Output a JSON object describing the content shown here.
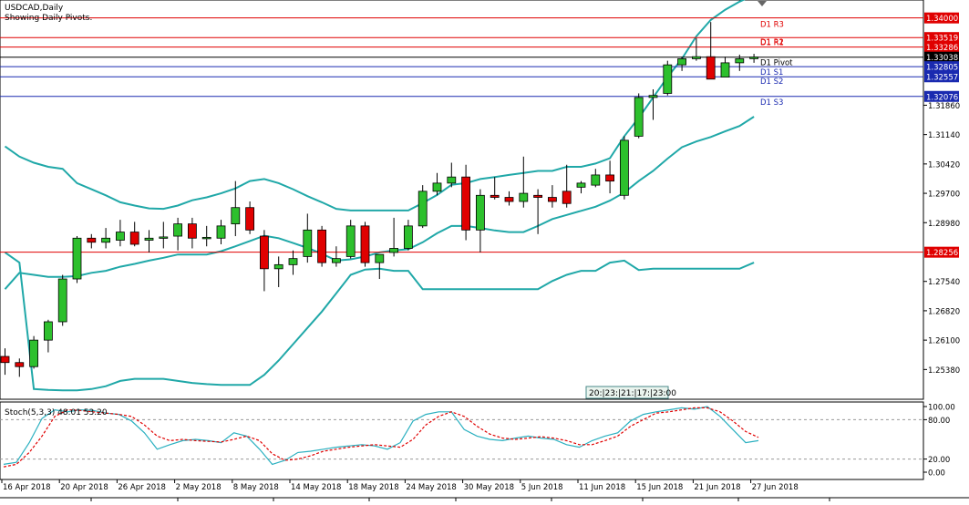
{
  "header": {
    "symbol_line": "USDCAD,Daily",
    "pivot_line": "Showing Daily Pivots."
  },
  "colors": {
    "bull": "#2dc02d",
    "bear": "#e00000",
    "bands": "#20a8a8",
    "pivot_res": "#e00000",
    "pivot_sup": "#1a2ab0",
    "pivot_main": "#000000",
    "stoch_main": "#2ab0c0",
    "stoch_signal": "#e00000"
  },
  "chart_data": [
    {
      "type": "candlestick",
      "title": "USDCAD,Daily",
      "subtitle": "Showing Daily Pivots.",
      "ylim": [
        1.2465,
        1.3444
      ],
      "y_ticks": [
        "1.31860",
        "1.31140",
        "1.30420",
        "1.29700",
        "1.28980",
        "1.27540",
        "1.26820",
        "1.26100",
        "1.25380"
      ],
      "x_ticks": [
        "16 Apr 2018",
        "20 Apr 2018",
        "26 Apr 2018",
        "2 May 2018",
        "8 May 2018",
        "14 May 2018",
        "18 May 2018",
        "24 May 2018",
        "30 May 2018",
        "5 Jun 2018",
        "11 Jun 2018",
        "15 Jun 2018",
        "21 Jun 2018",
        "27 Jun 2018"
      ],
      "candles": [
        {
          "o": 1.257,
          "h": 1.259,
          "l": 1.2525,
          "c": 1.2555
        },
        {
          "o": 1.2555,
          "h": 1.2565,
          "l": 1.252,
          "c": 1.2545
        },
        {
          "o": 1.2545,
          "h": 1.262,
          "l": 1.254,
          "c": 1.261
        },
        {
          "o": 1.261,
          "h": 1.266,
          "l": 1.258,
          "c": 1.2655
        },
        {
          "o": 1.2655,
          "h": 1.277,
          "l": 1.2645,
          "c": 1.276
        },
        {
          "o": 1.276,
          "h": 1.2865,
          "l": 1.275,
          "c": 1.286
        },
        {
          "o": 1.286,
          "h": 1.287,
          "l": 1.2835,
          "c": 1.285
        },
        {
          "o": 1.285,
          "h": 1.2885,
          "l": 1.2835,
          "c": 1.286
        },
        {
          "o": 1.2855,
          "h": 1.2905,
          "l": 1.284,
          "c": 1.2875
        },
        {
          "o": 1.2875,
          "h": 1.29,
          "l": 1.284,
          "c": 1.2845
        },
        {
          "o": 1.2855,
          "h": 1.288,
          "l": 1.2825,
          "c": 1.286
        },
        {
          "o": 1.286,
          "h": 1.29,
          "l": 1.2835,
          "c": 1.2863
        },
        {
          "o": 1.2865,
          "h": 1.291,
          "l": 1.283,
          "c": 1.2895
        },
        {
          "o": 1.2895,
          "h": 1.291,
          "l": 1.2835,
          "c": 1.286
        },
        {
          "o": 1.286,
          "h": 1.289,
          "l": 1.284,
          "c": 1.2862
        },
        {
          "o": 1.286,
          "h": 1.2905,
          "l": 1.2845,
          "c": 1.289
        },
        {
          "o": 1.2895,
          "h": 1.3,
          "l": 1.2865,
          "c": 1.2935
        },
        {
          "o": 1.2935,
          "h": 1.295,
          "l": 1.287,
          "c": 1.288
        },
        {
          "o": 1.2865,
          "h": 1.288,
          "l": 1.273,
          "c": 1.2785
        },
        {
          "o": 1.2785,
          "h": 1.2815,
          "l": 1.274,
          "c": 1.2795
        },
        {
          "o": 1.2795,
          "h": 1.283,
          "l": 1.277,
          "c": 1.281
        },
        {
          "o": 1.2815,
          "h": 1.292,
          "l": 1.28,
          "c": 1.288
        },
        {
          "o": 1.288,
          "h": 1.289,
          "l": 1.279,
          "c": 1.28
        },
        {
          "o": 1.28,
          "h": 1.284,
          "l": 1.279,
          "c": 1.281
        },
        {
          "o": 1.2815,
          "h": 1.2905,
          "l": 1.281,
          "c": 1.289
        },
        {
          "o": 1.289,
          "h": 1.29,
          "l": 1.279,
          "c": 1.28
        },
        {
          "o": 1.28,
          "h": 1.282,
          "l": 1.276,
          "c": 1.282
        },
        {
          "o": 1.2825,
          "h": 1.291,
          "l": 1.2815,
          "c": 1.2835
        },
        {
          "o": 1.2835,
          "h": 1.2905,
          "l": 1.283,
          "c": 1.289
        },
        {
          "o": 1.289,
          "h": 1.299,
          "l": 1.2885,
          "c": 1.2975
        },
        {
          "o": 1.2975,
          "h": 1.302,
          "l": 1.2965,
          "c": 1.2995
        },
        {
          "o": 1.2995,
          "h": 1.3045,
          "l": 1.2985,
          "c": 1.301
        },
        {
          "o": 1.301,
          "h": 1.304,
          "l": 1.2855,
          "c": 1.288
        },
        {
          "o": 1.288,
          "h": 1.298,
          "l": 1.2825,
          "c": 1.2965
        },
        {
          "o": 1.2965,
          "h": 1.301,
          "l": 1.2955,
          "c": 1.296
        },
        {
          "o": 1.296,
          "h": 1.2975,
          "l": 1.294,
          "c": 1.295
        },
        {
          "o": 1.295,
          "h": 1.306,
          "l": 1.2935,
          "c": 1.297
        },
        {
          "o": 1.2965,
          "h": 1.298,
          "l": 1.287,
          "c": 1.296
        },
        {
          "o": 1.296,
          "h": 1.299,
          "l": 1.2935,
          "c": 1.295
        },
        {
          "o": 1.2975,
          "h": 1.304,
          "l": 1.2935,
          "c": 1.2945
        },
        {
          "o": 1.2985,
          "h": 1.3,
          "l": 1.297,
          "c": 1.2995
        },
        {
          "o": 1.299,
          "h": 1.303,
          "l": 1.2985,
          "c": 1.3015
        },
        {
          "o": 1.3015,
          "h": 1.305,
          "l": 1.297,
          "c": 1.3
        },
        {
          "o": 1.2965,
          "h": 1.311,
          "l": 1.2955,
          "c": 1.31
        },
        {
          "o": 1.311,
          "h": 1.3215,
          "l": 1.3105,
          "c": 1.3205
        },
        {
          "o": 1.3205,
          "h": 1.3225,
          "l": 1.315,
          "c": 1.321
        },
        {
          "o": 1.3215,
          "h": 1.3295,
          "l": 1.321,
          "c": 1.3285
        },
        {
          "o": 1.3285,
          "h": 1.3305,
          "l": 1.327,
          "c": 1.33
        },
        {
          "o": 1.33,
          "h": 1.335,
          "l": 1.3295,
          "c": 1.3305
        },
        {
          "o": 1.3305,
          "h": 1.339,
          "l": 1.325,
          "c": 1.325
        },
        {
          "o": 1.3255,
          "h": 1.3305,
          "l": 1.3255,
          "c": 1.329
        },
        {
          "o": 1.329,
          "h": 1.331,
          "l": 1.327,
          "c": 1.33
        },
        {
          "o": 1.33,
          "h": 1.3312,
          "l": 1.329,
          "c": 1.3304
        }
      ],
      "bands": {
        "upper": [
          1.3085,
          1.306,
          1.3045,
          1.3035,
          1.303,
          1.2995,
          1.298,
          1.2965,
          1.2948,
          1.294,
          1.2933,
          1.2932,
          1.294,
          1.2953,
          1.296,
          1.297,
          1.2982,
          1.3,
          1.3005,
          1.2995,
          1.298,
          1.2963,
          1.2948,
          1.2932,
          1.2928,
          1.2928,
          1.2928,
          1.2928,
          1.2928,
          1.2946,
          1.2966,
          1.2991,
          1.2995,
          1.3005,
          1.301,
          1.3015,
          1.302,
          1.3025,
          1.3025,
          1.3035,
          1.3035,
          1.3043,
          1.3056,
          1.311,
          1.3155,
          1.3205,
          1.3255,
          1.33,
          1.3355,
          1.3395,
          1.342,
          1.344,
          1.3456
        ],
        "middle": [
          1.2735,
          1.2775,
          1.277,
          1.2765,
          1.2765,
          1.2767,
          1.2775,
          1.278,
          1.279,
          1.2797,
          1.2805,
          1.2812,
          1.282,
          1.282,
          1.282,
          1.2828,
          1.284,
          1.2853,
          1.2866,
          1.286,
          1.2848,
          1.2836,
          1.2822,
          1.2805,
          1.2808,
          1.2815,
          1.2825,
          1.283,
          1.2833,
          1.285,
          1.2872,
          1.289,
          1.289,
          1.2885,
          1.2879,
          1.2875,
          1.2875,
          1.289,
          1.2907,
          1.2917,
          1.2927,
          1.2937,
          1.2952,
          1.2972,
          1.3,
          1.3025,
          1.3055,
          1.3083,
          1.3097,
          1.3108,
          1.3122,
          1.3135,
          1.3158
        ],
        "lower": [
          1.2825,
          1.28,
          1.249,
          1.2488,
          1.2487,
          1.2487,
          1.249,
          1.2497,
          1.251,
          1.2515,
          1.2515,
          1.2515,
          1.251,
          1.2505,
          1.2502,
          1.25,
          1.25,
          1.25,
          1.2525,
          1.256,
          1.26,
          1.264,
          1.268,
          1.2725,
          1.277,
          1.2783,
          1.2785,
          1.278,
          1.278,
          1.2735,
          1.2735,
          1.2735,
          1.2735,
          1.2735,
          1.2735,
          1.2735,
          1.2735,
          1.2735,
          1.2755,
          1.277,
          1.278,
          1.278,
          1.28,
          1.2805,
          1.2782,
          1.2785,
          1.2785,
          1.2785,
          1.2785,
          1.2785,
          1.2785,
          1.2785,
          1.28
        ]
      },
      "pivots": [
        {
          "name": "D1 R3",
          "value": 1.34,
          "price_label": "1.34000",
          "kind": "res"
        },
        {
          "name": "D1 R2",
          "value": 1.33519,
          "price_label": "1.33519",
          "kind": "res"
        },
        {
          "name": "D1 R1",
          "value": 1.33286,
          "price_label": "1.33286",
          "kind": "res"
        },
        {
          "name": "D1 Pivot",
          "value": 1.33038,
          "price_label": "1.33038",
          "kind": "main"
        },
        {
          "name": "D1 S1",
          "value": 1.32805,
          "price_label": "1.32805",
          "kind": "sup"
        },
        {
          "name": "D1 S2",
          "value": 1.32557,
          "price_label": "1.32557",
          "kind": "sup"
        },
        {
          "name": "D1 S3",
          "value": 1.32076,
          "price_label": "1.32076",
          "kind": "sup"
        }
      ],
      "extra_level": {
        "value": 1.28256,
        "price_label": "1.28256"
      },
      "crosshair_time_label": "20:|23:|21:|17:|23:00"
    },
    {
      "type": "line",
      "title": "Stoch(5,3,3) 48.01 53.20",
      "ylim": [
        0,
        100
      ],
      "y_ticks": [
        "100.00",
        "80.00",
        "20.00",
        "0.00"
      ],
      "levels": [
        80,
        20
      ],
      "series": [
        {
          "name": "main",
          "values": [
            12,
            15,
            45,
            82,
            95,
            92,
            95,
            94,
            90,
            88,
            78,
            60,
            35,
            42,
            48,
            50,
            48,
            45,
            60,
            55,
            35,
            12,
            18,
            30,
            32,
            35,
            38,
            40,
            42,
            40,
            35,
            45,
            78,
            88,
            92,
            92,
            65,
            55,
            50,
            48,
            52,
            55,
            52,
            50,
            42,
            38,
            48,
            55,
            60,
            78,
            88,
            92,
            95,
            98,
            96,
            100,
            85,
            65,
            45,
            48
          ]
        },
        {
          "name": "signal",
          "values": [
            8,
            12,
            30,
            55,
            85,
            95,
            94,
            92,
            90,
            88,
            85,
            72,
            55,
            48,
            50,
            48,
            47,
            46,
            50,
            55,
            48,
            28,
            18,
            20,
            25,
            32,
            35,
            38,
            40,
            42,
            40,
            38,
            50,
            72,
            85,
            92,
            85,
            70,
            58,
            52,
            50,
            52,
            54,
            52,
            48,
            42,
            42,
            48,
            55,
            70,
            80,
            90,
            92,
            95,
            98,
            98,
            92,
            78,
            62,
            53
          ]
        }
      ]
    }
  ]
}
